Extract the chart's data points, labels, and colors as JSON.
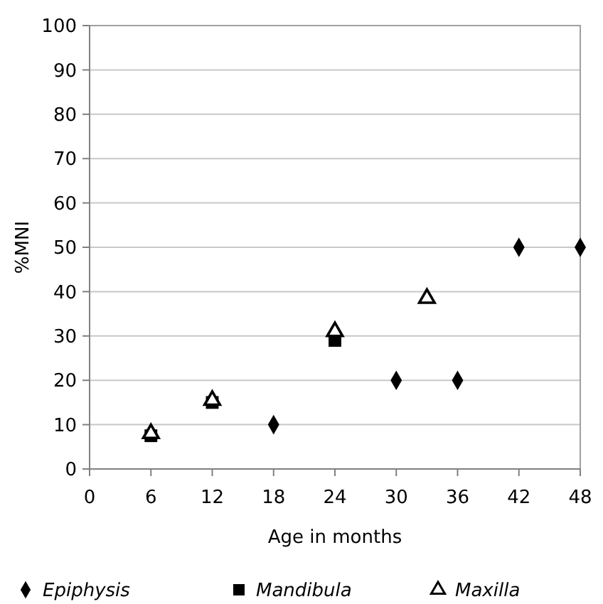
{
  "chart_data": {
    "type": "scatter",
    "xlabel": "Age in months",
    "ylabel": "%MNI",
    "xlim": [
      0,
      48
    ],
    "xticks": [
      0,
      6,
      12,
      18,
      24,
      30,
      36,
      42,
      48
    ],
    "ylim": [
      0,
      100
    ],
    "yticks": [
      0,
      10,
      20,
      30,
      40,
      50,
      60,
      70,
      80,
      90,
      100
    ],
    "grid": "y",
    "legend": "bottom",
    "series": [
      {
        "name": "Epiphysis",
        "color": "#000000",
        "marker": "diamond",
        "x": [
          18,
          30,
          36,
          42,
          48
        ],
        "values": [
          10,
          20,
          20,
          50,
          50
        ]
      },
      {
        "name": "Mandibula",
        "color": "#000000",
        "marker": "square",
        "x": [
          6,
          12,
          24
        ],
        "values": [
          7.5,
          15,
          29
        ]
      },
      {
        "name": "Maxilla",
        "color": "#000000",
        "marker": "triangle",
        "x": [
          6,
          12,
          24,
          33
        ],
        "values": [
          8,
          15.5,
          31,
          38.5
        ]
      }
    ]
  }
}
